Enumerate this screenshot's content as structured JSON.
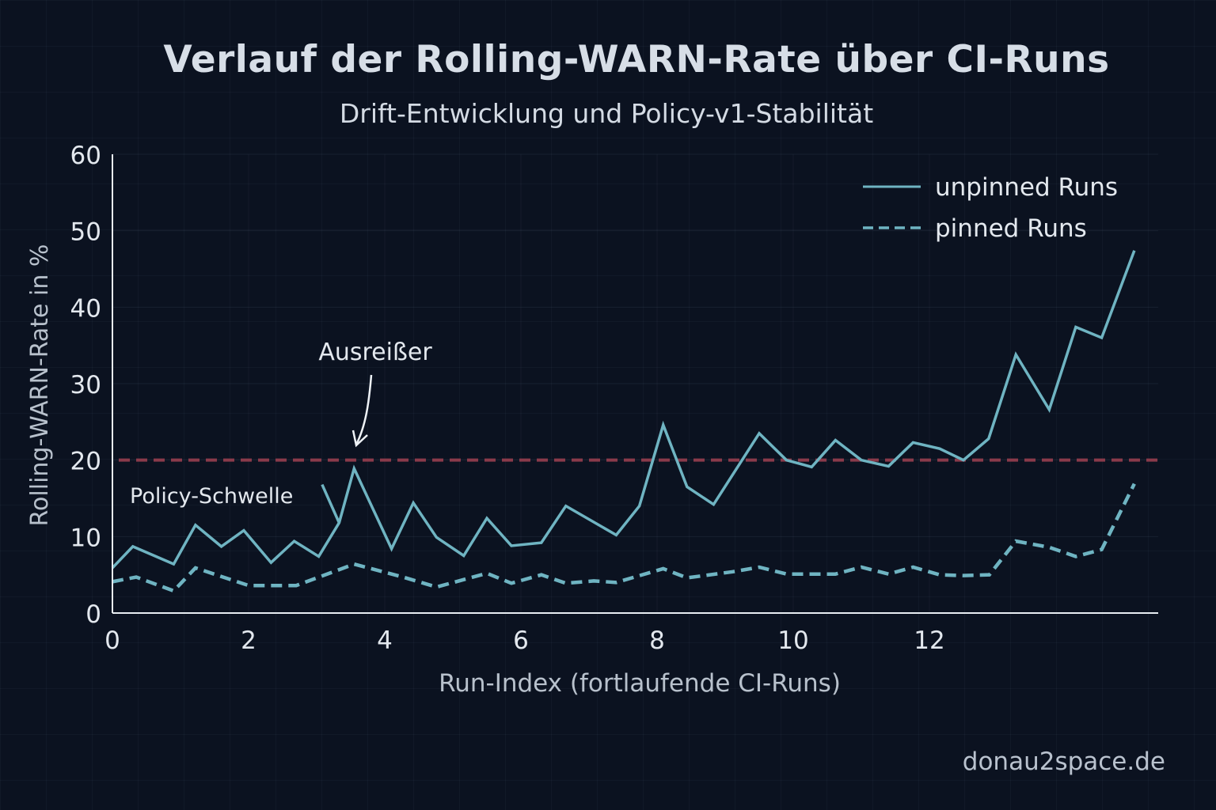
{
  "chart_data": {
    "type": "line",
    "title": "Verlauf der Rolling-WARN-Rate über CI-Runs",
    "subtitle": "Drift-Entwicklung und Policy-v1-Stabilität",
    "xlabel": "Run-Index (fortlaufende CI-Runs)",
    "ylabel": "Rolling-WARN-Rate in %",
    "xlim": [
      0,
      15.5
    ],
    "ylim": [
      0,
      60
    ],
    "x_ticks": [
      0,
      2,
      4,
      6,
      8,
      10,
      12
    ],
    "y_ticks": [
      0,
      10,
      20,
      30,
      40,
      50,
      60
    ],
    "grid": true,
    "legend_position": "top-right",
    "series": [
      {
        "name": "unpinned Runs",
        "style": "solid",
        "color": "#6fb4c2",
        "x": [
          0,
          0.3,
          0.9,
          1.22,
          1.6,
          1.93,
          2.33,
          2.67,
          3.03,
          3.33,
          3.55,
          4.1,
          4.42,
          4.76,
          5.16,
          5.5,
          5.86,
          6.3,
          6.66,
          7.4,
          7.74,
          8.09,
          8.44,
          8.83,
          9.5,
          9.9,
          10.27,
          10.62,
          11.0,
          11.4,
          11.76,
          12.15,
          12.5,
          12.87,
          13.27,
          13.76,
          14.15,
          14.53,
          15.01
        ],
        "values": [
          5.9,
          8.7,
          6.4,
          11.5,
          8.7,
          10.8,
          6.6,
          9.4,
          7.4,
          11.8,
          18.9,
          8.4,
          14.4,
          9.9,
          7.5,
          12.4,
          8.8,
          9.2,
          14.0,
          10.2,
          14.0,
          24.6,
          16.5,
          14.2,
          23.5,
          20.0,
          19.1,
          22.6,
          20.0,
          19.2,
          22.3,
          21.5,
          20.0,
          22.8,
          33.8,
          26.6,
          37.4,
          36.0,
          47.4
        ]
      },
      {
        "name": "pinned Runs",
        "style": "dashed",
        "color": "#6fb4c2",
        "x": [
          0,
          0.35,
          0.9,
          1.22,
          2.0,
          2.7,
          3.55,
          4.27,
          4.76,
          5.5,
          5.86,
          6.3,
          6.66,
          7.07,
          7.4,
          8.09,
          8.44,
          9.11,
          9.5,
          9.9,
          10.62,
          11.0,
          11.4,
          11.76,
          12.15,
          12.5,
          12.88,
          13.27,
          13.76,
          14.15,
          14.53,
          15.01
        ],
        "values": [
          4.1,
          4.7,
          2.9,
          5.9,
          3.6,
          3.6,
          6.4,
          4.7,
          3.4,
          5.2,
          3.9,
          5.0,
          3.9,
          4.2,
          4.0,
          5.8,
          4.6,
          5.4,
          6.0,
          5.1,
          5.1,
          6.0,
          5.1,
          6.0,
          5.0,
          4.9,
          5.0,
          9.4,
          8.6,
          7.4,
          8.3,
          16.9
        ]
      }
    ],
    "threshold": {
      "value": 20,
      "label": "Policy-Schwelle",
      "color": "#8a3a4a",
      "style": "dashed"
    },
    "annotations": [
      {
        "text": "Ausreißer",
        "points_to_x": 3.55,
        "points_to_y": 20.5
      }
    ],
    "stray_segment": {
      "x": [
        3.08,
        3.33
      ],
      "values": [
        16.8,
        11.8
      ]
    }
  },
  "footer": {
    "watermark": "donau2space.de"
  },
  "colors": {
    "background": "#0b1220",
    "axis": "#e8edf2",
    "line": "#6fb4c2",
    "threshold": "#8a3a4a",
    "text": "#dfe6ee"
  }
}
